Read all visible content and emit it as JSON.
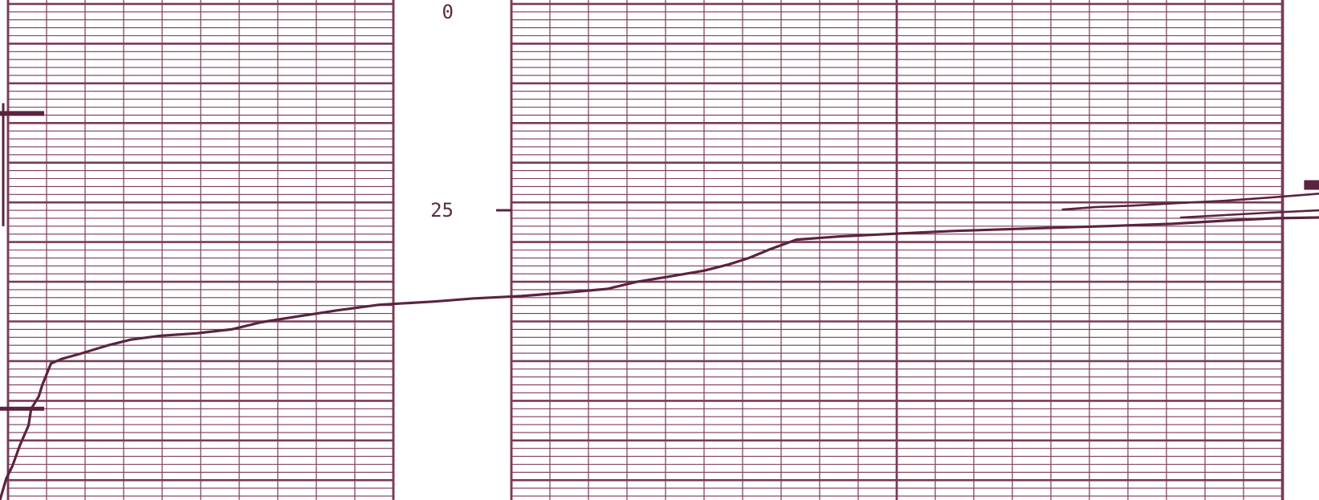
{
  "colors": {
    "grid_line": "#7a3a58",
    "trace_line": "#5a2440",
    "paper": "#ffffff"
  },
  "chart_data": {
    "type": "line",
    "title": "",
    "xlabel": "",
    "ylabel": "",
    "y_direction": "down",
    "ylim": [
      -1.5,
      61.5
    ],
    "y_tick_labels": [
      "0",
      "25"
    ],
    "y_ticks": [
      0,
      25
    ],
    "grid": true,
    "legend": "none",
    "series": [
      {
        "name": "",
        "points": [
          [
            0.0,
            61.5
          ],
          [
            0.5,
            58.8
          ],
          [
            1.0,
            57.2
          ],
          [
            1.6,
            54.6
          ],
          [
            2.3,
            52.1
          ],
          [
            2.5,
            50.0
          ],
          [
            3.1,
            48.5
          ],
          [
            3.4,
            47.0
          ],
          [
            4.1,
            44.3
          ],
          [
            5.0,
            43.7
          ],
          [
            6.4,
            43.1
          ],
          [
            8.7,
            42.0
          ],
          [
            10.5,
            41.3
          ],
          [
            12.9,
            40.8
          ],
          [
            15.8,
            40.5
          ],
          [
            18.6,
            40.0
          ],
          [
            21.0,
            39.1
          ],
          [
            24.2,
            38.3
          ],
          [
            27.1,
            37.6
          ],
          [
            30.5,
            36.9
          ],
          [
            34.8,
            36.5
          ],
          [
            38.1,
            36.1
          ],
          [
            41.9,
            35.8
          ],
          [
            45.2,
            35.4
          ],
          [
            48.8,
            34.9
          ],
          [
            51.2,
            34.0
          ],
          [
            53.6,
            33.4
          ],
          [
            56.6,
            32.6
          ],
          [
            58.6,
            31.8
          ],
          [
            60.2,
            31.0
          ],
          [
            61.9,
            29.9
          ],
          [
            64.0,
            28.7
          ],
          [
            67.4,
            28.3
          ],
          [
            71.3,
            28.0
          ],
          [
            76.6,
            27.6
          ],
          [
            82.5,
            27.3
          ],
          [
            88.8,
            27.0
          ],
          [
            94.2,
            26.7
          ],
          [
            98.5,
            26.3
          ],
          [
            102.5,
            26.0
          ],
          [
            106.0,
            25.9
          ]
        ]
      },
      {
        "name": "",
        "points": [
          [
            85.4,
            24.9
          ],
          [
            88.0,
            24.6
          ],
          [
            91.2,
            24.4
          ],
          [
            94.5,
            24.1
          ],
          [
            98.4,
            23.8
          ],
          [
            102.0,
            23.4
          ],
          [
            105.2,
            23.0
          ],
          [
            106.0,
            22.9
          ]
        ]
      },
      {
        "name": "",
        "points": [
          [
            94.9,
            25.9
          ],
          [
            98.4,
            25.6
          ],
          [
            102.0,
            25.3
          ],
          [
            106.0,
            25.0
          ]
        ]
      }
    ]
  }
}
